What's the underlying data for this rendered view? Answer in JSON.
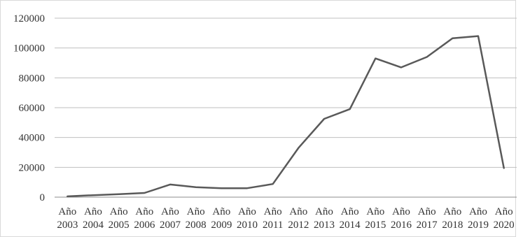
{
  "chart_data": {
    "type": "line",
    "categories": [
      [
        "Año",
        "2003"
      ],
      [
        "Año",
        "2004"
      ],
      [
        "Año",
        "2005"
      ],
      [
        "Año",
        "2006"
      ],
      [
        "Año",
        "2007"
      ],
      [
        "Año",
        "2008"
      ],
      [
        "Año",
        "2009"
      ],
      [
        "Año",
        "2010"
      ],
      [
        "Año",
        "2011"
      ],
      [
        "Año",
        "2012"
      ],
      [
        "Año",
        "2013"
      ],
      [
        "Año",
        "2014"
      ],
      [
        "Año",
        "2015"
      ],
      [
        "Año",
        "2016"
      ],
      [
        "Año",
        "2017"
      ],
      [
        "Año",
        "2018"
      ],
      [
        "Año",
        "2019"
      ],
      [
        "Año",
        "2020"
      ]
    ],
    "series": [
      {
        "values": [
          500,
          1300,
          2000,
          2800,
          8500,
          6700,
          6000,
          6000,
          8800,
          33000,
          52500,
          59000,
          93000,
          87000,
          94000,
          106500,
          108000,
          19500
        ]
      }
    ],
    "yticks": [
      "0",
      "20000",
      "40000",
      "60000",
      "80000",
      "100000",
      "120000"
    ],
    "ylim": [
      0,
      120000
    ],
    "grid": true,
    "legend": "none",
    "colors": {
      "line": "#595959",
      "grid": "#bfbfbf",
      "baseline": "#8c8c8c"
    }
  }
}
